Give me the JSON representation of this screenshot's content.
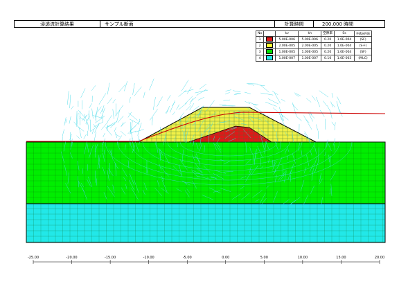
{
  "header": {
    "title": "浸透流計算結果",
    "section": "サンプル断面",
    "time_label": "計算時間",
    "time_value": "200.000 時間"
  },
  "legend": {
    "headers": [
      "No",
      "",
      "kv",
      "kh",
      "空隙率",
      "Ss",
      "不透水性地"
    ],
    "rows": [
      {
        "no": "1",
        "color": "#e01818",
        "kv": "5.00E-006",
        "kh": "5.00E-006",
        "porosity": "0.20",
        "ss": "1.0E-004",
        "type": "(SF)"
      },
      {
        "no": "2",
        "color": "#ffff33",
        "kv": "2.00E-005",
        "kh": "2.00E-005",
        "porosity": "0.20",
        "ss": "1.0E-004",
        "type": "(S-F)"
      },
      {
        "no": "3",
        "color": "#00dd00",
        "kv": "1.00E-005",
        "kh": "1.00E-005",
        "porosity": "0.20",
        "ss": "1.0E-004",
        "type": "(SF)"
      },
      {
        "no": "4",
        "color": "#22e8e8",
        "kv": "1.00E-007",
        "kh": "1.00E-007",
        "porosity": "0.10",
        "ss": "1.0E-003",
        "type": "(MLC)"
      }
    ]
  },
  "axis": {
    "ticks": [
      "-25.00",
      "-20.00",
      "-15.00",
      "-10.00",
      "-5.00",
      "0.00",
      "5.00",
      "10.00",
      "15.00",
      "20.00"
    ]
  },
  "colors": {
    "green_layer": "#00ee00",
    "cyan_layer": "#22e8e8",
    "embankment": "#f0f048",
    "core": "#e01818",
    "flow_lines": "#40d8e8",
    "phreatic": "#cc0000"
  }
}
